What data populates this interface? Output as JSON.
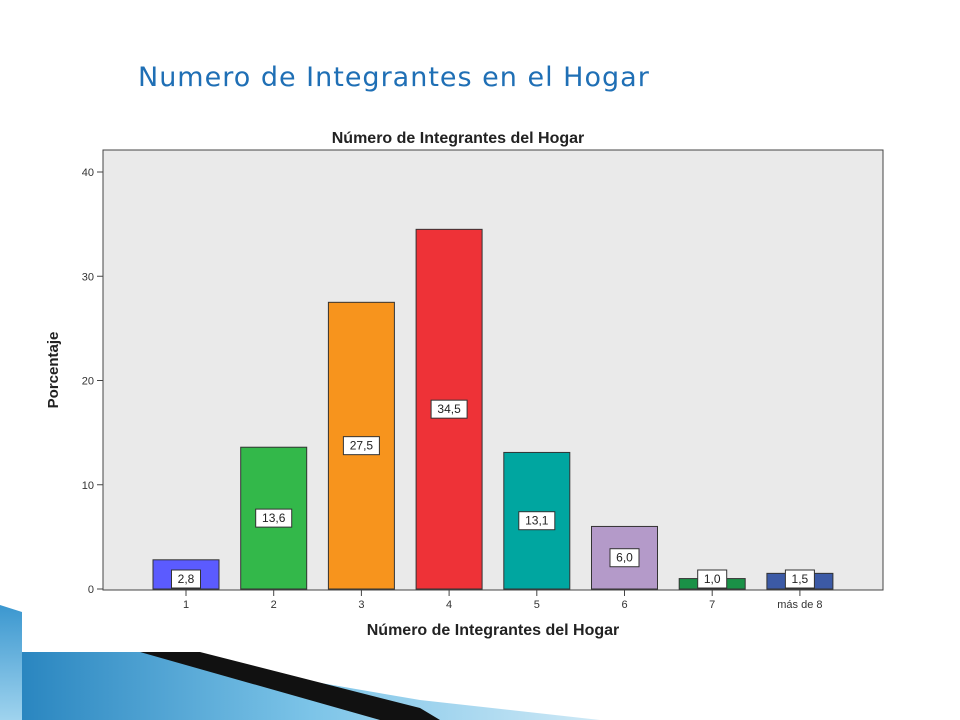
{
  "slide": {
    "title": "Numero de Integrantes en el Hogar"
  },
  "colors": {
    "title": "#1f6fb5",
    "plot_bg": "#eaeaea",
    "deco_dark": "#111111",
    "deco_blue": "#5aa9d6"
  },
  "chart_data": {
    "type": "bar",
    "title": "Número de Integrantes del Hogar",
    "xlabel": "Número de Integrantes del Hogar",
    "ylabel": "Porcentaje",
    "ylim": [
      0,
      40
    ],
    "yticks": [
      "0",
      "10",
      "20",
      "30",
      "40"
    ],
    "categories": [
      "1",
      "2",
      "3",
      "4",
      "5",
      "6",
      "7",
      "más de 8"
    ],
    "values": [
      2.8,
      13.6,
      27.5,
      34.5,
      13.1,
      6.0,
      1.0,
      1.5
    ],
    "value_labels": [
      "2,8",
      "13,6",
      "27,5",
      "34,5",
      "13,1",
      "6,0",
      "1,0",
      "1,5"
    ],
    "colors": [
      "#5b5bff",
      "#33b84a",
      "#f7941d",
      "#ee3237",
      "#00a6a0",
      "#b49ac9",
      "#1a9147",
      "#3c5aa6"
    ],
    "grid": false,
    "legend": "none"
  }
}
